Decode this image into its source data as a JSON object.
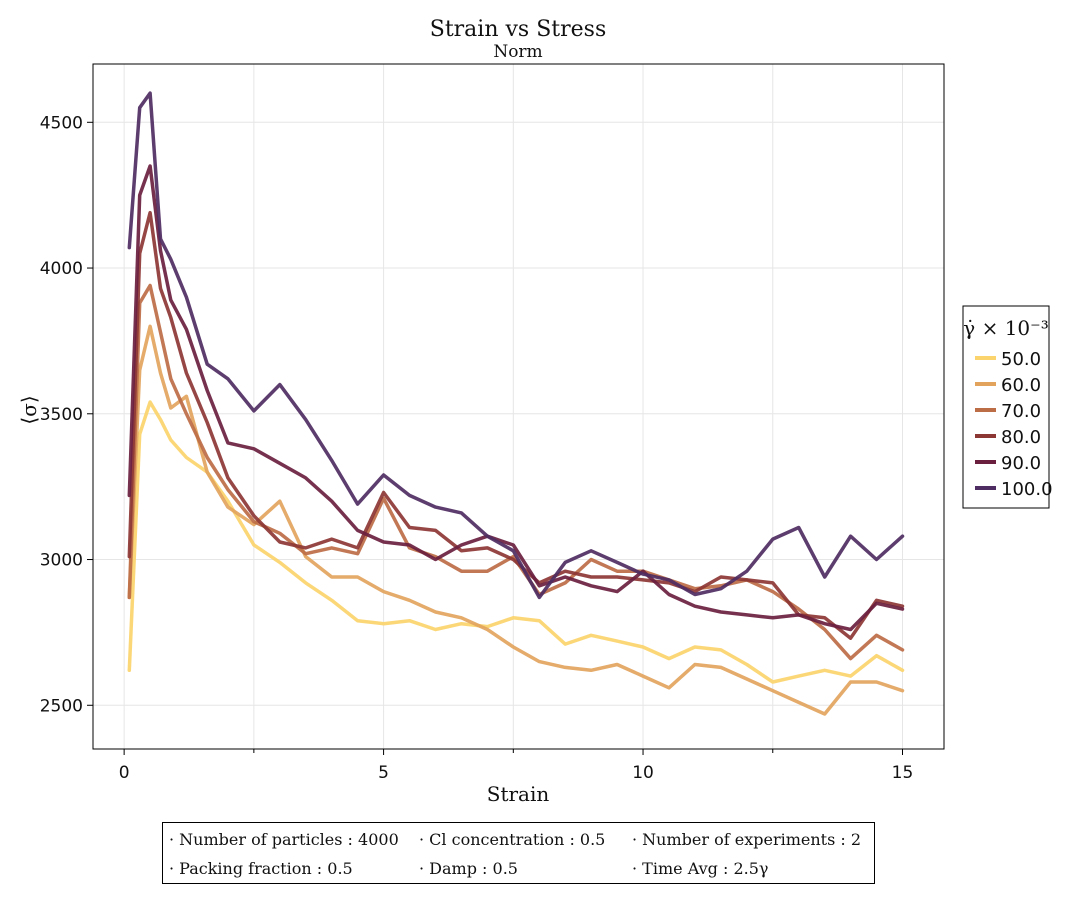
{
  "chart_data": {
    "type": "line",
    "title": "Strain vs Stress",
    "subtitle": "Norm",
    "xlabel": "Strain",
    "ylabel": "⟨σ⟩",
    "xlim": [
      -0.6,
      15.8
    ],
    "ylim": [
      2350,
      4700
    ],
    "xticks": [
      0,
      5,
      10,
      15
    ],
    "yticks": [
      2500,
      3000,
      3500,
      4000,
      4500
    ],
    "grid": true,
    "legend": {
      "title": "γ̇ × 10⁻³",
      "placement": "right-outside"
    },
    "x": [
      0.1,
      0.3,
      0.5,
      0.7,
      0.9,
      1.2,
      1.6,
      2.0,
      2.5,
      3.0,
      3.5,
      4.0,
      4.5,
      5.0,
      5.5,
      6.0,
      6.5,
      7.0,
      7.5,
      8.0,
      8.5,
      9.0,
      9.5,
      10.0,
      10.5,
      11.0,
      11.5,
      12.0,
      12.5,
      13.0,
      13.5,
      14.0,
      14.5,
      15.0
    ],
    "series": [
      {
        "name": "50.0",
        "color": "#fbd46d",
        "values": [
          2620,
          3430,
          3540,
          3480,
          3410,
          3350,
          3300,
          3200,
          3050,
          2990,
          2920,
          2860,
          2790,
          2780,
          2790,
          2760,
          2780,
          2770,
          2800,
          2790,
          2710,
          2740,
          2720,
          2700,
          2660,
          2700,
          2690,
          2640,
          2580,
          2600,
          2620,
          2600,
          2670,
          2620
        ]
      },
      {
        "name": "60.0",
        "color": "#e2a45d",
        "values": [
          2870,
          3650,
          3800,
          3640,
          3520,
          3560,
          3300,
          3180,
          3120,
          3200,
          3010,
          2940,
          2940,
          2890,
          2860,
          2820,
          2800,
          2760,
          2700,
          2650,
          2630,
          2620,
          2640,
          2600,
          2560,
          2640,
          2630,
          2590,
          2550,
          2510,
          2470,
          2580,
          2580,
          2550
        ]
      },
      {
        "name": "70.0",
        "color": "#bd6d46",
        "values": [
          2870,
          3880,
          3940,
          3780,
          3620,
          3500,
          3350,
          3240,
          3130,
          3090,
          3020,
          3040,
          3020,
          3210,
          3040,
          3010,
          2960,
          2960,
          3010,
          2880,
          2920,
          3000,
          2960,
          2960,
          2930,
          2900,
          2910,
          2930,
          2890,
          2830,
          2760,
          2660,
          2740,
          2690
        ]
      },
      {
        "name": "80.0",
        "color": "#8d3735",
        "values": [
          3010,
          4050,
          4190,
          3930,
          3830,
          3640,
          3470,
          3280,
          3150,
          3060,
          3040,
          3070,
          3040,
          3230,
          3110,
          3100,
          3030,
          3040,
          3000,
          2920,
          2960,
          2940,
          2940,
          2930,
          2920,
          2890,
          2940,
          2930,
          2920,
          2810,
          2800,
          2730,
          2860,
          2840
        ]
      },
      {
        "name": "90.0",
        "color": "#6a1f3f",
        "values": [
          3220,
          4250,
          4350,
          4060,
          3890,
          3790,
          3580,
          3400,
          3380,
          3330,
          3280,
          3200,
          3100,
          3060,
          3050,
          3000,
          3050,
          3080,
          3050,
          2910,
          2940,
          2910,
          2890,
          2960,
          2880,
          2840,
          2820,
          2810,
          2800,
          2810,
          2780,
          2760,
          2850,
          2830
        ]
      },
      {
        "name": "100.0",
        "color": "#4e2d62",
        "values": [
          4070,
          4550,
          4600,
          4100,
          4030,
          3900,
          3670,
          3620,
          3510,
          3600,
          3480,
          3340,
          3190,
          3290,
          3220,
          3180,
          3160,
          3080,
          3030,
          2870,
          2990,
          3030,
          2990,
          2950,
          2930,
          2880,
          2900,
          2960,
          3070,
          3110,
          2940,
          3080,
          3000,
          3080
        ]
      }
    ]
  },
  "info": {
    "line1": [
      "· Number of particles : 4000",
      "· Cl concentration : 0.5",
      "· Number of experiments : 2"
    ],
    "line2": [
      "· Packing fraction : 0.5",
      "· Damp : 0.5",
      "· Time Avg : 2.5γ"
    ]
  }
}
